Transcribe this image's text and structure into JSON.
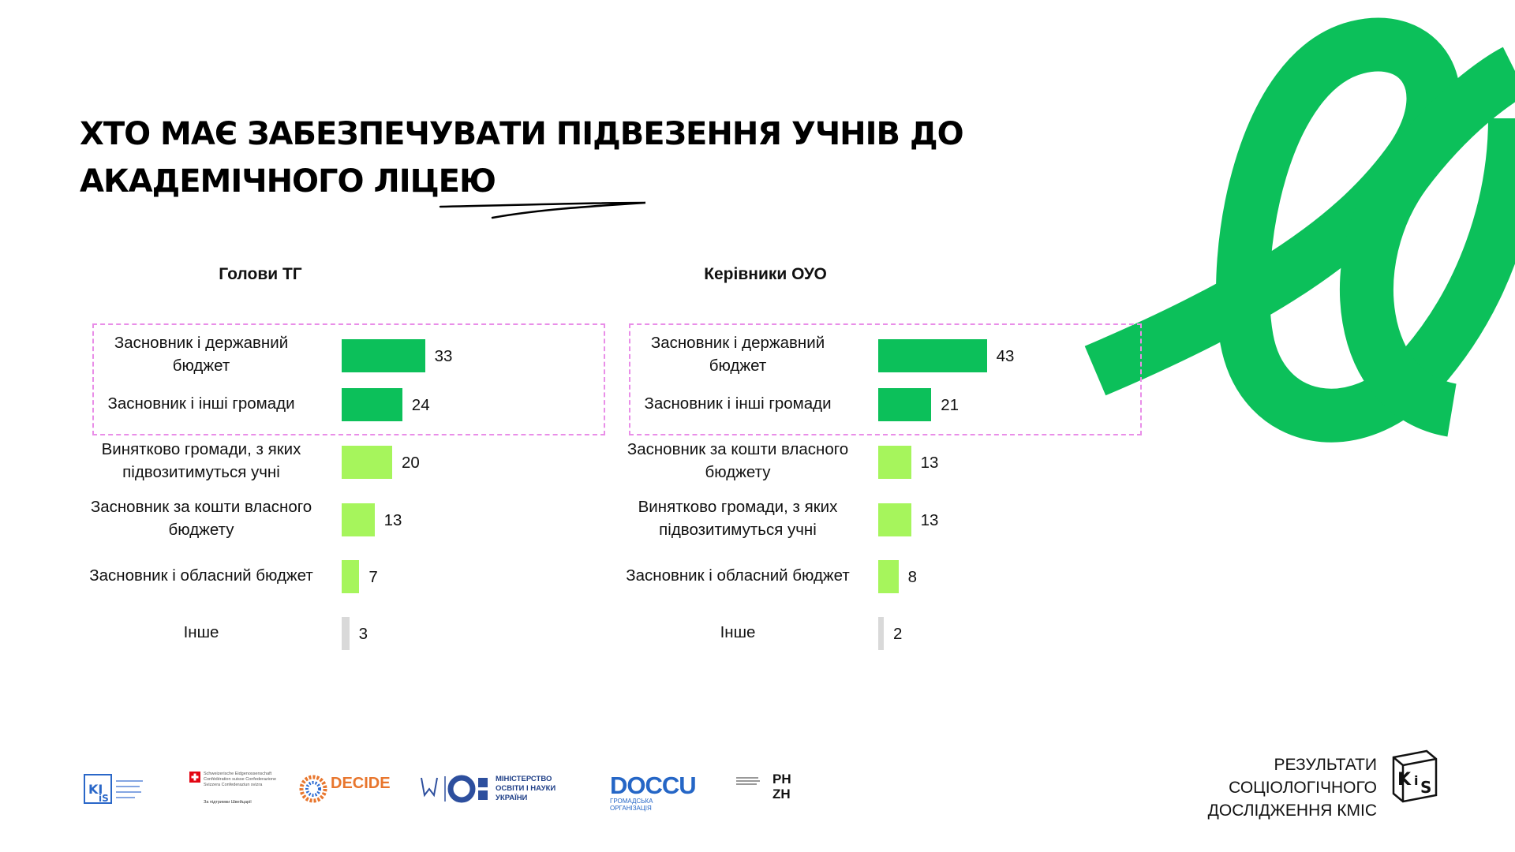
{
  "title": "ХТО МАЄ ЗАБЕЗПЕЧУВАТИ ПІДВЕЗЕННЯ УЧНІВ ДО АКАДЕМІЧНОГО ЛІЦЕЮ",
  "colors": {
    "highlight": "#0cc05a",
    "other": "#a6f55c",
    "misc": "#d9d9d9",
    "dashed_box": "#e98ee8",
    "brand_green": "#0cc05a"
  },
  "chart_data": [
    {
      "type": "bar",
      "orientation": "horizontal",
      "title": "Голови ТГ",
      "categories": [
        "Засновник і державний бюджет",
        "Засновник і інші громади",
        "Винятково громади, з яких підвозитимуться учні",
        "Засновник за кошти власного бюджету",
        "Засновник і обласний бюджет",
        "Інше"
      ],
      "category_lines": [
        [
          "Засновник і державний",
          "бюджет"
        ],
        [
          "Засновник і інші громади"
        ],
        [
          "Винятково громади, з яких",
          "підвозитимуться учні"
        ],
        [
          "Засновник за кошти власного",
          "бюджету"
        ],
        [
          "Засновник і обласний бюджет"
        ],
        [
          "Інше"
        ]
      ],
      "values": [
        33,
        24,
        20,
        13,
        7,
        3
      ],
      "bar_colors": [
        "highlight",
        "highlight",
        "other",
        "other",
        "other",
        "misc"
      ],
      "highlighted_rows": [
        0,
        1
      ]
    },
    {
      "type": "bar",
      "orientation": "horizontal",
      "title": "Керівники ОУО",
      "categories": [
        "Засновник і державний бюджет",
        "Засновник і інші громади",
        "Засновник за кошти власного бюджету",
        "Винятково громади, з яких підвозитимуться учні",
        "Засновник і обласний бюджет",
        "Інше"
      ],
      "category_lines": [
        [
          "Засновник і державний",
          "бюджет"
        ],
        [
          "Засновник і інші громади"
        ],
        [
          "Засновник за кошти власного",
          "бюджету"
        ],
        [
          "Винятково громади, з яких",
          "підвозитимуться учні"
        ],
        [
          "Засновник і обласний бюджет"
        ],
        [
          "Інше"
        ]
      ],
      "values": [
        43,
        21,
        13,
        13,
        8,
        2
      ],
      "bar_colors": [
        "highlight",
        "highlight",
        "other",
        "other",
        "other",
        "misc"
      ],
      "highlighted_rows": [
        0,
        1
      ]
    }
  ],
  "footer": {
    "logos": [
      {
        "name": "kmis-small-logo",
        "text": "KI IS"
      },
      {
        "name": "swiss-confederation-logo",
        "text": "Schweizerische Eidgenossenschaft Confédération suisse Confederazione Svizzera Confederaziun svizra",
        "subtext": "За підтримки Швейцарії"
      },
      {
        "name": "decide-logo",
        "text": "DECIDE"
      },
      {
        "name": "ministry-of-education-logo",
        "text": "МІНІСТЕРСТВО ОСВІТИ І НАУКИ УКРАЇНИ"
      },
      {
        "name": "docu-logo",
        "text": "DOCCU",
        "subtext": "ГРОМАДСЬКА ОРГАНІЗАЦІЯ"
      },
      {
        "name": "phzh-logo",
        "text": "PH ZH"
      }
    ],
    "kmis_lines": [
      "РЕЗУЛЬТАТИ",
      "СОЦІОЛОГІЧНОГО",
      "ДОСЛІДЖЕННЯ КМІС"
    ],
    "kmis_logo_text": "KI IS"
  }
}
